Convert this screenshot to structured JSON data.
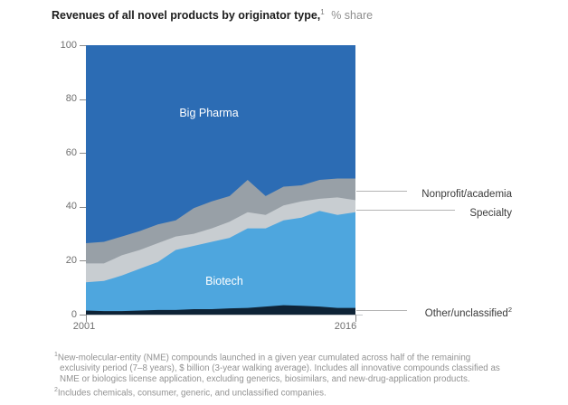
{
  "title": {
    "main": "Revenues of all novel products by originator type,",
    "sup": "1",
    "suffix": "% share"
  },
  "chart_data": {
    "type": "area",
    "stacked": true,
    "title": "Revenues of all novel products by originator type, % share",
    "xlabel": "",
    "ylabel": "% share",
    "ylim": [
      0,
      100
    ],
    "yticks": [
      100,
      80,
      60,
      40,
      20,
      0
    ],
    "grid": false,
    "legend_position": "right-annotations",
    "x": [
      2001,
      2002,
      2003,
      2004,
      2005,
      2006,
      2007,
      2008,
      2009,
      2010,
      2011,
      2012,
      2013,
      2014,
      2015,
      2016
    ],
    "xtick_labels": [
      "2001",
      "2016"
    ],
    "series": [
      {
        "name": "Other/unclassified",
        "color": "#0e2336",
        "values": [
          1.5,
          1.3,
          1.3,
          1.5,
          1.7,
          1.7,
          2.0,
          2.0,
          2.3,
          2.5,
          3.0,
          3.5,
          3.3,
          3.0,
          2.5,
          2.5
        ]
      },
      {
        "name": "Biotech",
        "color": "#4ea6de",
        "values": [
          10.5,
          11.2,
          13.2,
          15.5,
          17.8,
          22.3,
          23.5,
          25.0,
          26.2,
          29.5,
          29.0,
          31.5,
          32.7,
          35.5,
          34.5,
          35.5
        ]
      },
      {
        "name": "Specialty",
        "color": "#c8cdd1",
        "values": [
          7.0,
          6.5,
          7.5,
          7.0,
          7.0,
          5.0,
          4.5,
          5.0,
          6.0,
          6.0,
          5.0,
          5.5,
          6.0,
          4.5,
          6.5,
          4.5
        ]
      },
      {
        "name": "Nonprofit/academia",
        "color": "#98a0a7",
        "values": [
          7.5,
          8.0,
          7.0,
          7.0,
          7.0,
          6.0,
          9.5,
          10.0,
          9.5,
          12.0,
          7.0,
          7.0,
          6.0,
          7.0,
          7.0,
          8.0
        ]
      },
      {
        "name": "Big Pharma",
        "color": "#2c6cb4",
        "values": [
          73.5,
          73.0,
          71.0,
          69.0,
          66.5,
          65.0,
          60.5,
          58.0,
          56.0,
          50.0,
          56.0,
          52.5,
          52.0,
          50.0,
          49.5,
          49.5
        ]
      }
    ]
  },
  "area_labels": {
    "big_pharma": "Big Pharma",
    "biotech": "Biotech"
  },
  "annotations": [
    {
      "label": "Nonprofit/academia",
      "sup": ""
    },
    {
      "label": "Specialty",
      "sup": ""
    },
    {
      "label": "Other/unclassified",
      "sup": "2"
    }
  ],
  "footnotes": {
    "lines": [
      {
        "sup": "1",
        "text": "New-molecular-entity (NME) compounds launched in a given year cumulated across half of the remaining"
      },
      {
        "sup": "",
        "text": "exclusivity period (7–8 years), $ billion (3-year walking average). Includes all innovative compounds classified as"
      },
      {
        "sup": "",
        "text": "NME or biologics license application, excluding generics, biosimilars, and new-drug-application products."
      },
      {
        "sup": "2",
        "text": "Includes chemicals, consumer, generic, and unclassified companies."
      }
    ]
  },
  "colors": {
    "big_pharma": "#2c6cb4",
    "biotech": "#4ea6de",
    "specialty": "#c8cdd1",
    "nonprofit_academia": "#98a0a7",
    "other_unclassified": "#0e2336",
    "title_text": "#1c1c1c",
    "muted_text": "#8e8e8e",
    "axis_text": "#6f6f6f",
    "connector_line": "#b4b4b4"
  }
}
